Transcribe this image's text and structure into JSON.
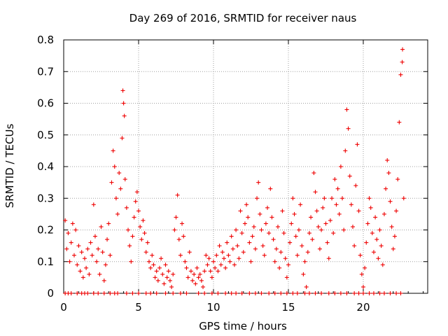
{
  "chart_data": {
    "type": "scatter",
    "title": "Day 269 of 2016, SRMTID for receiver naus",
    "xlabel": "GPS time / hours",
    "ylabel": "SRMTID / TECUs",
    "xlim": [
      0,
      24.3
    ],
    "ylim": [
      0,
      0.8
    ],
    "xticks": [
      "0",
      "5",
      "10",
      "15",
      "20"
    ],
    "yticks": [
      "0",
      "0.1",
      "0.2",
      "0.3",
      "0.4",
      "0.5",
      "0.6",
      "0.7",
      "0.8"
    ],
    "grid": true,
    "marker": "+",
    "color": "#ee0000",
    "series": [
      {
        "name": "SRMTID",
        "points": [
          [
            0.1,
            0.23
          ],
          [
            0.2,
            0.14
          ],
          [
            0.3,
            0.19
          ],
          [
            0.4,
            0.1
          ],
          [
            0.5,
            0.16
          ],
          [
            0.6,
            0.22
          ],
          [
            0.7,
            0.12
          ],
          [
            0.8,
            0.2
          ],
          [
            0.9,
            0.09
          ],
          [
            1.0,
            0.15
          ],
          [
            1.1,
            0.07
          ],
          [
            1.2,
            0.13
          ],
          [
            1.3,
            0.05
          ],
          [
            1.4,
            0.11
          ],
          [
            1.5,
            0.08
          ],
          [
            1.6,
            0.14
          ],
          [
            1.7,
            0.06
          ],
          [
            1.8,
            0.16
          ],
          [
            1.9,
            0.12
          ],
          [
            2.0,
            0.28
          ],
          [
            2.1,
            0.18
          ],
          [
            2.2,
            0.1
          ],
          [
            2.3,
            0.14
          ],
          [
            2.4,
            0.06
          ],
          [
            2.5,
            0.21
          ],
          [
            2.6,
            0.13
          ],
          [
            2.7,
            0.04
          ],
          [
            2.8,
            0.09
          ],
          [
            2.9,
            0.17
          ],
          [
            3.0,
            0.22
          ],
          [
            3.1,
            0.12
          ],
          [
            3.2,
            0.35
          ],
          [
            3.3,
            0.45
          ],
          [
            3.4,
            0.4
          ],
          [
            3.5,
            0.3
          ],
          [
            3.6,
            0.25
          ],
          [
            3.7,
            0.38
          ],
          [
            3.8,
            0.33
          ],
          [
            3.9,
            0.49
          ],
          [
            3.95,
            0.64
          ],
          [
            4.0,
            0.6
          ],
          [
            4.05,
            0.56
          ],
          [
            4.1,
            0.36
          ],
          [
            4.2,
            0.27
          ],
          [
            4.3,
            0.2
          ],
          [
            4.4,
            0.15
          ],
          [
            4.5,
            0.1
          ],
          [
            4.6,
            0.18
          ],
          [
            4.7,
            0.24
          ],
          [
            4.8,
            0.29
          ],
          [
            4.9,
            0.32
          ],
          [
            5.0,
            0.26
          ],
          [
            5.1,
            0.21
          ],
          [
            5.2,
            0.17
          ],
          [
            5.3,
            0.23
          ],
          [
            5.4,
            0.19
          ],
          [
            5.5,
            0.13
          ],
          [
            5.6,
            0.16
          ],
          [
            5.7,
            0.1
          ],
          [
            5.8,
            0.08
          ],
          [
            5.9,
            0.12
          ],
          [
            6.0,
            0.09
          ],
          [
            6.1,
            0.05
          ],
          [
            6.2,
            0.07
          ],
          [
            6.3,
            0.04
          ],
          [
            6.4,
            0.08
          ],
          [
            6.5,
            0.11
          ],
          [
            6.6,
            0.06
          ],
          [
            6.7,
            0.03
          ],
          [
            6.8,
            0.09
          ],
          [
            6.9,
            0.05
          ],
          [
            7.0,
            0.07
          ],
          [
            7.1,
            0.04
          ],
          [
            7.2,
            0.02
          ],
          [
            7.3,
            0.06
          ],
          [
            7.4,
            0.2
          ],
          [
            7.5,
            0.24
          ],
          [
            7.6,
            0.31
          ],
          [
            7.7,
            0.17
          ],
          [
            7.8,
            0.12
          ],
          [
            7.9,
            0.22
          ],
          [
            8.0,
            0.18
          ],
          [
            8.1,
            0.1
          ],
          [
            8.2,
            0.08
          ],
          [
            8.3,
            0.05
          ],
          [
            8.4,
            0.13
          ],
          [
            8.5,
            0.07
          ],
          [
            8.6,
            0.04
          ],
          [
            8.7,
            0.06
          ],
          [
            8.8,
            0.03
          ],
          [
            8.9,
            0.08
          ],
          [
            9.0,
            0.05
          ],
          [
            9.1,
            0.06
          ],
          [
            9.2,
            0.04
          ],
          [
            9.3,
            0.02
          ],
          [
            9.4,
            0.07
          ],
          [
            9.5,
            0.12
          ],
          [
            9.6,
            0.09
          ],
          [
            9.7,
            0.11
          ],
          [
            9.8,
            0.07
          ],
          [
            9.9,
            0.05
          ],
          [
            10.0,
            0.1
          ],
          [
            10.1,
            0.08
          ],
          [
            10.2,
            0.12
          ],
          [
            10.3,
            0.07
          ],
          [
            10.4,
            0.15
          ],
          [
            10.5,
            0.09
          ],
          [
            10.6,
            0.13
          ],
          [
            10.7,
            0.11
          ],
          [
            10.8,
            0.08
          ],
          [
            10.9,
            0.16
          ],
          [
            11.0,
            0.12
          ],
          [
            11.1,
            0.1
          ],
          [
            11.2,
            0.18
          ],
          [
            11.3,
            0.14
          ],
          [
            11.4,
            0.09
          ],
          [
            11.5,
            0.2
          ],
          [
            11.6,
            0.15
          ],
          [
            11.7,
            0.11
          ],
          [
            11.8,
            0.26
          ],
          [
            11.9,
            0.19
          ],
          [
            12.0,
            0.13
          ],
          [
            12.1,
            0.22
          ],
          [
            12.2,
            0.28
          ],
          [
            12.3,
            0.24
          ],
          [
            12.4,
            0.16
          ],
          [
            12.5,
            0.1
          ],
          [
            12.6,
            0.18
          ],
          [
            12.7,
            0.21
          ],
          [
            12.8,
            0.14
          ],
          [
            12.9,
            0.3
          ],
          [
            13.0,
            0.35
          ],
          [
            13.1,
            0.25
          ],
          [
            13.2,
            0.2
          ],
          [
            13.3,
            0.15
          ],
          [
            13.4,
            0.12
          ],
          [
            13.5,
            0.22
          ],
          [
            13.6,
            0.27
          ],
          [
            13.7,
            0.19
          ],
          [
            13.8,
            0.33
          ],
          [
            13.9,
            0.24
          ],
          [
            14.0,
            0.17
          ],
          [
            14.1,
            0.1
          ],
          [
            14.2,
            0.14
          ],
          [
            14.3,
            0.21
          ],
          [
            14.4,
            0.08
          ],
          [
            14.5,
            0.13
          ],
          [
            14.6,
            0.26
          ],
          [
            14.7,
            0.19
          ],
          [
            14.8,
            0.11
          ],
          [
            14.9,
            0.05
          ],
          [
            15.0,
            0.09
          ],
          [
            15.1,
            0.16
          ],
          [
            15.2,
            0.22
          ],
          [
            15.3,
            0.3
          ],
          [
            15.4,
            0.25
          ],
          [
            15.5,
            0.18
          ],
          [
            15.6,
            0.12
          ],
          [
            15.7,
            0.2
          ],
          [
            15.8,
            0.28
          ],
          [
            15.9,
            0.15
          ],
          [
            16.0,
            0.06
          ],
          [
            16.1,
            0.1
          ],
          [
            16.2,
            0.02
          ],
          [
            16.3,
            0.13
          ],
          [
            16.4,
            0.19
          ],
          [
            16.5,
            0.24
          ],
          [
            16.6,
            0.17
          ],
          [
            16.7,
            0.38
          ],
          [
            16.8,
            0.32
          ],
          [
            16.9,
            0.26
          ],
          [
            17.0,
            0.21
          ],
          [
            17.1,
            0.14
          ],
          [
            17.2,
            0.2
          ],
          [
            17.3,
            0.27
          ],
          [
            17.4,
            0.3
          ],
          [
            17.5,
            0.22
          ],
          [
            17.6,
            0.16
          ],
          [
            17.7,
            0.11
          ],
          [
            17.8,
            0.23
          ],
          [
            17.9,
            0.3
          ],
          [
            18.0,
            0.19
          ],
          [
            18.1,
            0.36
          ],
          [
            18.2,
            0.28
          ],
          [
            18.3,
            0.33
          ],
          [
            18.4,
            0.25
          ],
          [
            18.5,
            0.4
          ],
          [
            18.6,
            0.3
          ],
          [
            18.7,
            0.2
          ],
          [
            18.8,
            0.45
          ],
          [
            18.9,
            0.58
          ],
          [
            19.0,
            0.52
          ],
          [
            19.1,
            0.37
          ],
          [
            19.2,
            0.28
          ],
          [
            19.3,
            0.21
          ],
          [
            19.4,
            0.15
          ],
          [
            19.5,
            0.34
          ],
          [
            19.6,
            0.47
          ],
          [
            19.7,
            0.26
          ],
          [
            19.8,
            0.12
          ],
          [
            19.9,
            0.06
          ],
          [
            20.0,
            0.02
          ],
          [
            20.1,
            0.08
          ],
          [
            20.2,
            0.16
          ],
          [
            20.3,
            0.22
          ],
          [
            20.4,
            0.3
          ],
          [
            20.5,
            0.27
          ],
          [
            20.6,
            0.19
          ],
          [
            20.7,
            0.13
          ],
          [
            20.8,
            0.24
          ],
          [
            20.9,
            0.17
          ],
          [
            21.0,
            0.11
          ],
          [
            21.1,
            0.2
          ],
          [
            21.2,
            0.15
          ],
          [
            21.3,
            0.09
          ],
          [
            21.4,
            0.25
          ],
          [
            21.5,
            0.33
          ],
          [
            21.6,
            0.42
          ],
          [
            21.7,
            0.38
          ],
          [
            21.8,
            0.29
          ],
          [
            21.9,
            0.21
          ],
          [
            22.0,
            0.14
          ],
          [
            22.1,
            0.18
          ],
          [
            22.2,
            0.26
          ],
          [
            22.3,
            0.36
          ],
          [
            22.4,
            0.54
          ],
          [
            22.5,
            0.69
          ],
          [
            22.6,
            0.73
          ],
          [
            22.62,
            0.77
          ],
          [
            22.7,
            0.3
          ]
        ],
        "zero_hours": [
          0.1,
          0.3,
          0.5,
          0.9,
          1.2,
          1.4,
          1.6,
          2.0,
          2.3,
          2.7,
          3.1,
          3.4,
          3.6,
          4.2,
          4.6,
          5.0,
          5.5,
          5.8,
          6.2,
          6.8,
          7.3,
          7.8,
          8.2,
          9.0,
          9.4,
          9.9,
          10.3,
          10.8,
          11.2,
          11.5,
          11.9,
          12.4,
          12.8,
          13.2,
          13.7,
          14.1,
          14.5,
          14.9,
          15.3,
          15.6,
          16.1,
          16.4,
          16.8,
          17.2,
          17.7,
          18.1,
          18.5,
          18.9,
          19.4,
          19.7,
          20.0,
          20.4,
          20.7,
          21.1,
          21.4,
          21.8,
          22.2,
          22.5
        ]
      }
    ]
  }
}
